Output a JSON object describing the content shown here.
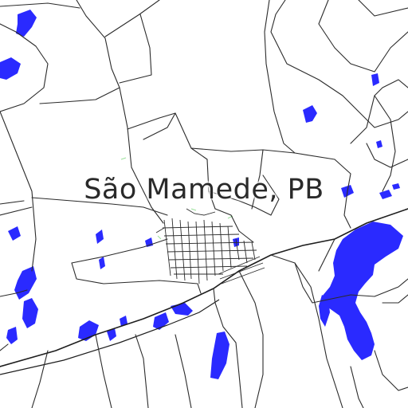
{
  "map": {
    "place_label": "São Mamede, PB",
    "colors": {
      "background": "#ffffff",
      "water": "#2a2aff",
      "roads": "#2b2b2b",
      "vegetation": "#9be09b"
    }
  }
}
